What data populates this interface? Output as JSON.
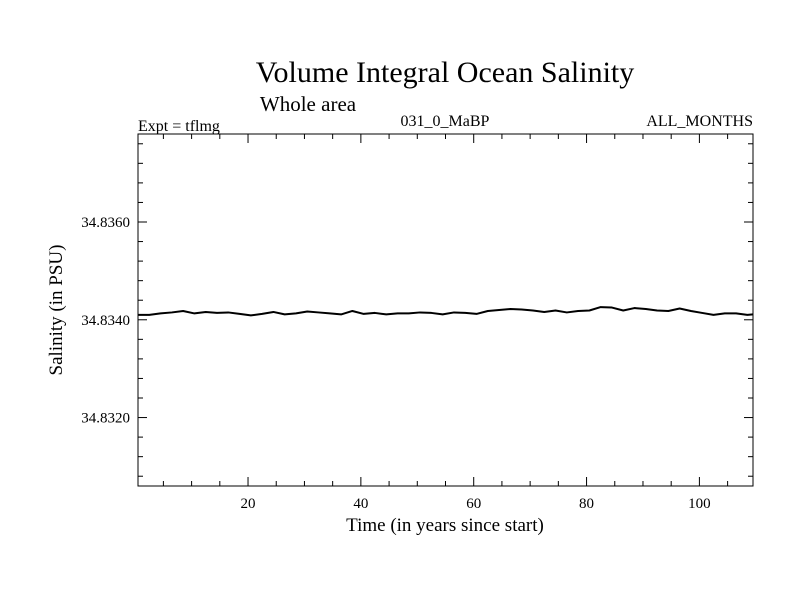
{
  "chart_data": {
    "type": "line",
    "title": "Volume Integral Ocean Salinity",
    "subtitle": "Whole area",
    "header_left": "Expt = tflmg",
    "header_center": "031_0_MaBP",
    "header_right": "ALL_MONTHS",
    "xlabel": "Time (in years since start)",
    "ylabel": "Salinity (in PSU)",
    "xlim": [
      0.5,
      109.5
    ],
    "ylim": [
      34.8306,
      34.8378
    ],
    "xticks": [
      20,
      40,
      60,
      80,
      100
    ],
    "xtick_labels": [
      "20",
      "40",
      "60",
      "80",
      "100"
    ],
    "yticks": [
      34.832,
      34.834,
      34.836
    ],
    "ytick_labels": [
      "34.8320",
      "34.8340",
      "34.8360"
    ],
    "grid": false,
    "series": [
      {
        "name": "salinity",
        "color": "#000000",
        "x": [
          0.5,
          2.5,
          4.5,
          6.5,
          8.5,
          10.5,
          12.5,
          14.5,
          16.5,
          18.5,
          20.5,
          22.5,
          24.5,
          26.5,
          28.5,
          30.5,
          32.5,
          34.5,
          36.5,
          38.5,
          40.5,
          42.5,
          44.5,
          46.5,
          48.5,
          50.5,
          52.5,
          54.5,
          56.5,
          58.5,
          60.5,
          62.5,
          64.5,
          66.5,
          68.5,
          70.5,
          72.5,
          74.5,
          76.5,
          78.5,
          80.5,
          82.5,
          84.5,
          86.5,
          88.5,
          90.5,
          92.5,
          94.5,
          96.5,
          98.5,
          100.5,
          102.5,
          104.5,
          106.5,
          108.5,
          109.5
        ],
        "values": [
          34.8341,
          34.8341,
          34.83413,
          34.83415,
          34.83418,
          34.83413,
          34.83416,
          34.83414,
          34.83415,
          34.83412,
          34.83409,
          34.83412,
          34.83416,
          34.83411,
          34.83413,
          34.83417,
          34.83415,
          34.83413,
          34.83411,
          34.83418,
          34.83412,
          34.83414,
          34.83411,
          34.83413,
          34.83413,
          34.83415,
          34.83414,
          34.83411,
          34.83415,
          34.83414,
          34.83412,
          34.83418,
          34.8342,
          34.83422,
          34.83421,
          34.83419,
          34.83416,
          34.83419,
          34.83415,
          34.83418,
          34.83419,
          34.83426,
          34.83425,
          34.83419,
          34.83424,
          34.83422,
          34.83419,
          34.83418,
          34.83423,
          34.83418,
          34.83414,
          34.8341,
          34.83413,
          34.83413,
          34.8341,
          34.83411
        ]
      }
    ]
  }
}
